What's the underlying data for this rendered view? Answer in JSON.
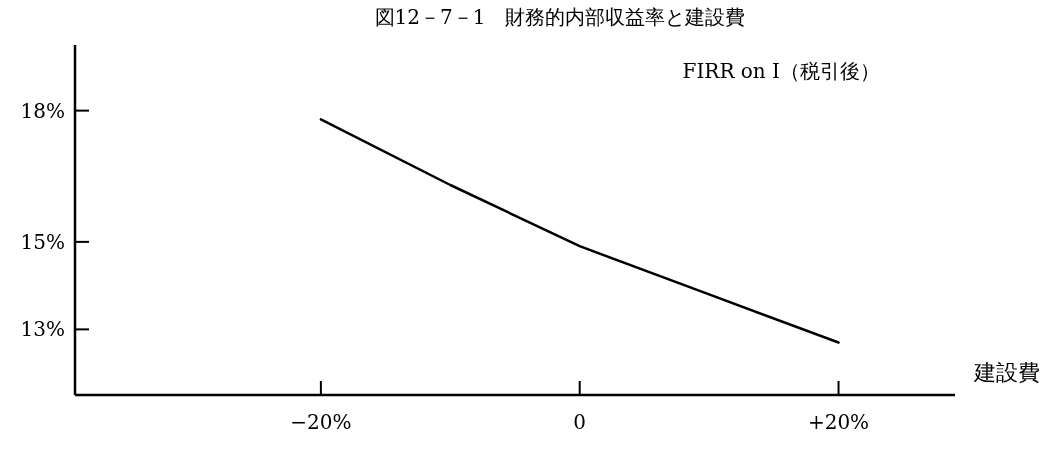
{
  "chart_data": {
    "type": "line",
    "title": "図12－7－1　財務的内部収益率と建設費",
    "subtitle": "FIRR on I（税引後）",
    "xlabel": "建設費",
    "x": [
      -20,
      -10,
      0,
      10,
      20
    ],
    "series": [
      {
        "color": "#000000",
        "values": [
          17.8,
          16.3,
          14.9,
          13.8,
          12.7
        ]
      }
    ],
    "xlim": [
      -39,
      29
    ],
    "ylim": [
      11.5,
      19.5
    ],
    "xticks": [
      {
        "value": -20,
        "label": "−20%"
      },
      {
        "value": 0,
        "label": "0"
      },
      {
        "value": 20,
        "label": "+20%"
      }
    ],
    "yticks": [
      {
        "value": 13,
        "label": "13%"
      },
      {
        "value": 15,
        "label": "15%"
      },
      {
        "value": 18,
        "label": "18%"
      }
    ]
  }
}
